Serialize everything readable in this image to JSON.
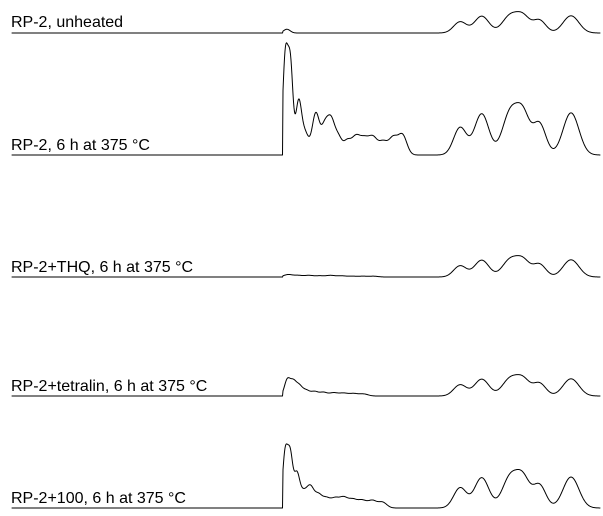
{
  "chart_data": {
    "type": "line",
    "title": "",
    "xlabel": "",
    "ylabel": "",
    "grid": false,
    "legend": "none",
    "line_color": "#000000",
    "series": [
      {
        "name": "RP-2, unheated",
        "peaks": [
          {
            "x": 0.3,
            "h": 0.02,
            "w": 0.4
          },
          {
            "x": 0.5,
            "h": 0.03,
            "w": 0.5
          },
          {
            "x": 0.55,
            "h": 0.01,
            "w": 0.4
          },
          {
            "x": 0.58,
            "h": 0.01,
            "w": 0.4
          },
          {
            "x": 0.63,
            "h": 0.01,
            "w": 0.4
          },
          {
            "x": 0.7,
            "h": 0.01,
            "w": 0.4
          },
          {
            "x": 0.78,
            "h": 0.01,
            "w": 0.4
          }
        ]
      },
      {
        "name": "RP-2, 6 h at 375 °C",
        "peaks": [
          {
            "x": 0.32,
            "h": 0.98,
            "w": 0.35
          },
          {
            "x": 1.03,
            "h": 0.9,
            "w": 0.35
          },
          {
            "x": 2.16,
            "h": 0.52,
            "w": 0.4
          },
          {
            "x": 3.05,
            "h": 0.22,
            "w": 0.5
          },
          {
            "x": 4.55,
            "h": 0.42,
            "w": 0.5
          },
          {
            "x": 5.8,
            "h": 0.28,
            "w": 0.5
          },
          {
            "x": 6.7,
            "h": 0.32,
            "w": 0.5
          },
          {
            "x": 7.7,
            "h": 0.17,
            "w": 0.5
          },
          {
            "x": 8.9,
            "h": 0.13,
            "w": 0.5
          },
          {
            "x": 10.1,
            "h": 0.18,
            "w": 0.6
          },
          {
            "x": 11.3,
            "h": 0.15,
            "w": 0.6
          },
          {
            "x": 12.5,
            "h": 0.17,
            "w": 0.6
          },
          {
            "x": 13.9,
            "h": 0.13,
            "w": 0.6
          },
          {
            "x": 15.3,
            "h": 0.17,
            "w": 0.6
          },
          {
            "x": 16.6,
            "h": 0.2,
            "w": 0.6
          }
        ]
      },
      {
        "name": "RP-2+THQ, 6 h at 375 °C",
        "peaks": [
          {
            "x": 0.7,
            "h": 0.06,
            "w": 0.6
          },
          {
            "x": 2.1,
            "h": 0.04,
            "w": 0.6
          },
          {
            "x": 3.6,
            "h": 0.04,
            "w": 0.6
          },
          {
            "x": 5.1,
            "h": 0.03,
            "w": 0.6
          },
          {
            "x": 6.6,
            "h": 0.04,
            "w": 0.6
          },
          {
            "x": 8.1,
            "h": 0.03,
            "w": 0.6
          },
          {
            "x": 9.6,
            "h": 0.02,
            "w": 0.6
          },
          {
            "x": 11.1,
            "h": 0.02,
            "w": 0.6
          },
          {
            "x": 12.6,
            "h": 0.02,
            "w": 0.6
          }
        ]
      },
      {
        "name": "RP-2+tetralin, 6 h at 375 °C",
        "peaks": [
          {
            "x": 0.6,
            "h": 0.4,
            "w": 0.4
          },
          {
            "x": 1.4,
            "h": 0.32,
            "w": 0.4
          },
          {
            "x": 2.2,
            "h": 0.25,
            "w": 0.45
          },
          {
            "x": 3.2,
            "h": 0.14,
            "w": 0.5
          },
          {
            "x": 4.4,
            "h": 0.11,
            "w": 0.5
          },
          {
            "x": 5.6,
            "h": 0.09,
            "w": 0.5
          },
          {
            "x": 7.0,
            "h": 0.08,
            "w": 0.6
          },
          {
            "x": 8.4,
            "h": 0.07,
            "w": 0.6
          },
          {
            "x": 9.8,
            "h": 0.06,
            "w": 0.6
          },
          {
            "x": 11.2,
            "h": 0.05,
            "w": 0.6
          }
        ]
      },
      {
        "name": "RP-2+100, 6 h at 375 °C",
        "peaks": [
          {
            "x": 0.3,
            "h": 0.75,
            "w": 0.35
          },
          {
            "x": 1.0,
            "h": 0.7,
            "w": 0.35
          },
          {
            "x": 1.9,
            "h": 0.45,
            "w": 0.4
          },
          {
            "x": 2.8,
            "h": 0.2,
            "w": 0.5
          },
          {
            "x": 3.8,
            "h": 0.28,
            "w": 0.5
          },
          {
            "x": 4.9,
            "h": 0.17,
            "w": 0.5
          },
          {
            "x": 6.0,
            "h": 0.13,
            "w": 0.55
          },
          {
            "x": 7.2,
            "h": 0.12,
            "w": 0.55
          },
          {
            "x": 8.4,
            "h": 0.14,
            "w": 0.6
          },
          {
            "x": 9.7,
            "h": 0.11,
            "w": 0.6
          },
          {
            "x": 11.0,
            "h": 0.1,
            "w": 0.6
          },
          {
            "x": 12.4,
            "h": 0.1,
            "w": 0.6
          },
          {
            "x": 13.8,
            "h": 0.08,
            "w": 0.6
          }
        ]
      }
    ],
    "common_tail_peaks": [
      {
        "x": 24.6,
        "h": 0.28,
        "w": 0.9
      },
      {
        "x": 27.6,
        "h": 0.42,
        "w": 1.0
      },
      {
        "x": 31.6,
        "h": 0.44,
        "w": 1.1
      },
      {
        "x": 33.4,
        "h": 0.36,
        "w": 0.9
      },
      {
        "x": 35.6,
        "h": 0.32,
        "w": 0.9
      },
      {
        "x": 40.0,
        "h": 0.43,
        "w": 1.1
      }
    ]
  }
}
